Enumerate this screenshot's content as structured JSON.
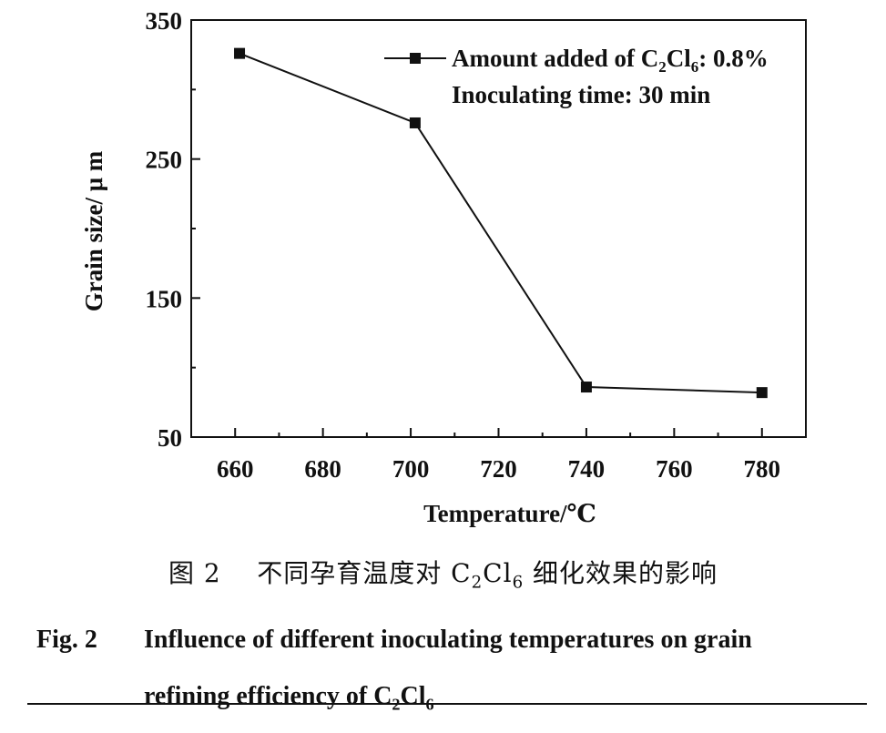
{
  "chart_data": {
    "type": "line",
    "xlabel": "Temperature/℃",
    "ylabel": "Grain size/ μ m",
    "xlim": [
      650,
      790
    ],
    "ylim": [
      50,
      350
    ],
    "x_ticks": [
      660,
      680,
      700,
      720,
      740,
      760,
      780
    ],
    "y_ticks": [
      50,
      150,
      250,
      350
    ],
    "grid": false,
    "legend_position": "top-right",
    "series": [
      {
        "name": "Amount added of C2Cl6: 0.8%",
        "x": [
          661,
          701,
          740,
          780
        ],
        "y": [
          326,
          276,
          86,
          82
        ],
        "marker": "square",
        "color": "#111111"
      }
    ],
    "legend_note": "Inoculating time: 30 min"
  },
  "legend": {
    "prefix": "Amount added of C",
    "sub1": "2",
    "mid": "Cl",
    "sub2": "6",
    "suffix": ": 0.8%",
    "note": "Inoculating time: 30 min"
  },
  "caption": {
    "cn_fig": "图 2",
    "cn_a": "不同孕育温度对 C",
    "cn_sub1": "2",
    "cn_b": "Cl",
    "cn_sub2": "6",
    "cn_c": " 细化效果的影响",
    "en_fig": "Fig. 2",
    "en_line1": "Influence of different inoculating temperatures on grain",
    "en_line2a": "refining efficiency of C",
    "en_sub1": "2",
    "en_line2b": "Cl",
    "en_sub2": "6"
  }
}
